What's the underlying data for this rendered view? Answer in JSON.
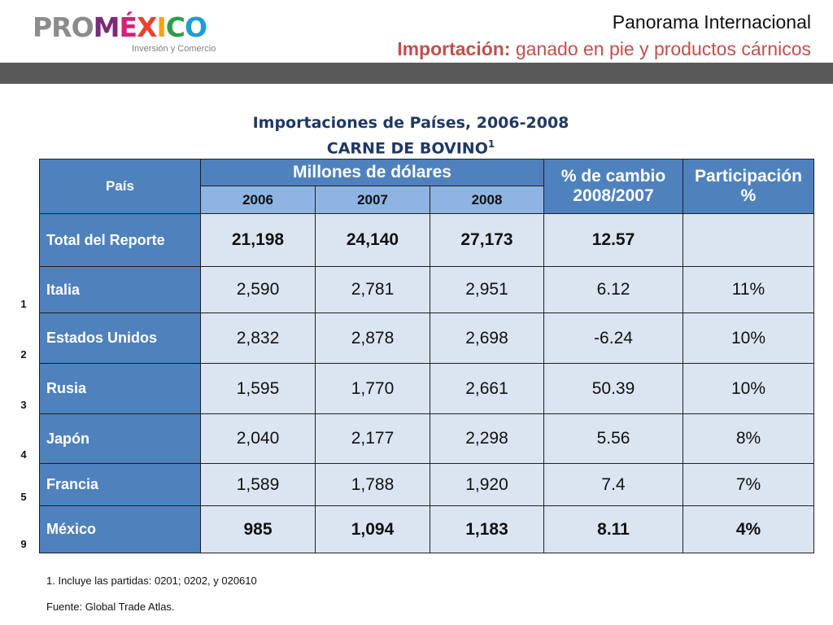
{
  "logo": {
    "pro": "PRO",
    "mexico_letters": [
      "M",
      "É",
      "X",
      "I",
      "C",
      "O"
    ],
    "tagline": "Inversión y Comercio"
  },
  "header": {
    "title": "Panorama Internacional",
    "subtitle_bold": "Importación:",
    "subtitle_rest": " ganado en pie y productos cárnicos"
  },
  "table_title": {
    "line1": "Importaciones de Países, 2006-2008",
    "line2": "CARNE DE BOVINO",
    "line2_sup": "1"
  },
  "table": {
    "col_country": "País",
    "col_millones": "Millones de dólares",
    "col_cambio_1": "% de cambio",
    "col_cambio_2": "2008/2007",
    "col_part_1": "Participación",
    "col_part_2": "%",
    "years": [
      "2006",
      "2007",
      "2008"
    ],
    "rows": [
      {
        "rank": "",
        "country": "Total del Reporte",
        "v2006": "21,198",
        "v2007": "24,140",
        "v2008": "27,173",
        "cambio": "12.57",
        "part": ""
      },
      {
        "rank": "1",
        "country": "Italia",
        "v2006": "2,590",
        "v2007": "2,781",
        "v2008": "2,951",
        "cambio": "6.12",
        "part": "11%"
      },
      {
        "rank": "2",
        "country": "Estados Unidos",
        "v2006": "2,832",
        "v2007": "2,878",
        "v2008": "2,698",
        "cambio": "-6.24",
        "part": "10%"
      },
      {
        "rank": "3",
        "country": "Rusia",
        "v2006": "1,595",
        "v2007": "1,770",
        "v2008": "2,661",
        "cambio": "50.39",
        "part": "10%"
      },
      {
        "rank": "4",
        "country": "Japón",
        "v2006": "2,040",
        "v2007": "2,177",
        "v2008": "2,298",
        "cambio": "5.56",
        "part": "8%"
      },
      {
        "rank": "5",
        "country": "Francia",
        "v2006": "1,589",
        "v2007": "1,788",
        "v2008": "1,920",
        "cambio": "7.4",
        "part": "7%"
      },
      {
        "rank": "9",
        "country": "México",
        "v2006": "985",
        "v2007": "1,094",
        "v2008": "1,183",
        "cambio": "8.11",
        "part": "4%"
      }
    ]
  },
  "footnotes": {
    "note1": "1. Incluye las partidas: 0201; 0202, y 020610",
    "source": "Fuente: Global Trade Atlas."
  }
}
